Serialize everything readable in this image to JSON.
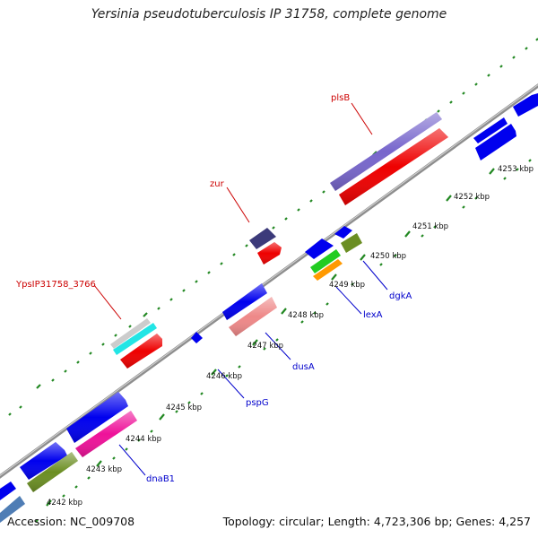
{
  "title": "Yersinia pseudotuberculosis IP 31758, complete genome",
  "accession": "Accession: NC_009708",
  "summary": "Topology: circular; Length: 4,723,306 bp; Genes: 4,257",
  "ruler_labels": [
    "4242 kbp",
    "4243 kbp",
    "4244 kbp",
    "4245 kbp",
    "4246 kbp",
    "4247 kbp",
    "4248 kbp",
    "4249 kbp",
    "4250 kbp",
    "4251 kbp",
    "4252 kbp",
    "4253 kbp"
  ],
  "gene_labels_top": [
    "plsB",
    "zur",
    "YpsIP31758_3766"
  ],
  "gene_labels_bottom": [
    "dgkA",
    "lexA",
    "dusA",
    "pspG",
    "dnaB1"
  ],
  "colors": {
    "forward_label": "#cc0000",
    "reverse_label": "#0000cc",
    "backbone": "#999999",
    "tick": "#228822",
    "cds": "#0000ee",
    "rna": "#ff0000"
  }
}
